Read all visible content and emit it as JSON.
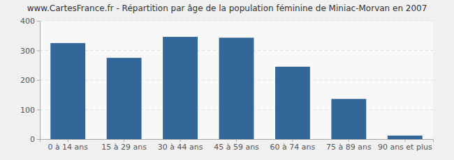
{
  "chart_data": {
    "type": "bar",
    "title": "www.CartesFrance.fr - Répartition par âge de la population féminine de Miniac-Morvan en 2007",
    "categories": [
      "0 à 14 ans",
      "15 à 29 ans",
      "30 à 44 ans",
      "45 à 59 ans",
      "60 à 74 ans",
      "75 à 89 ans",
      "90 ans et plus"
    ],
    "values": [
      325,
      275,
      346,
      343,
      245,
      136,
      12
    ],
    "color": "#336699",
    "ylim": [
      0,
      400
    ],
    "yticks": [
      0,
      100,
      200,
      300,
      400
    ],
    "grid": true
  }
}
